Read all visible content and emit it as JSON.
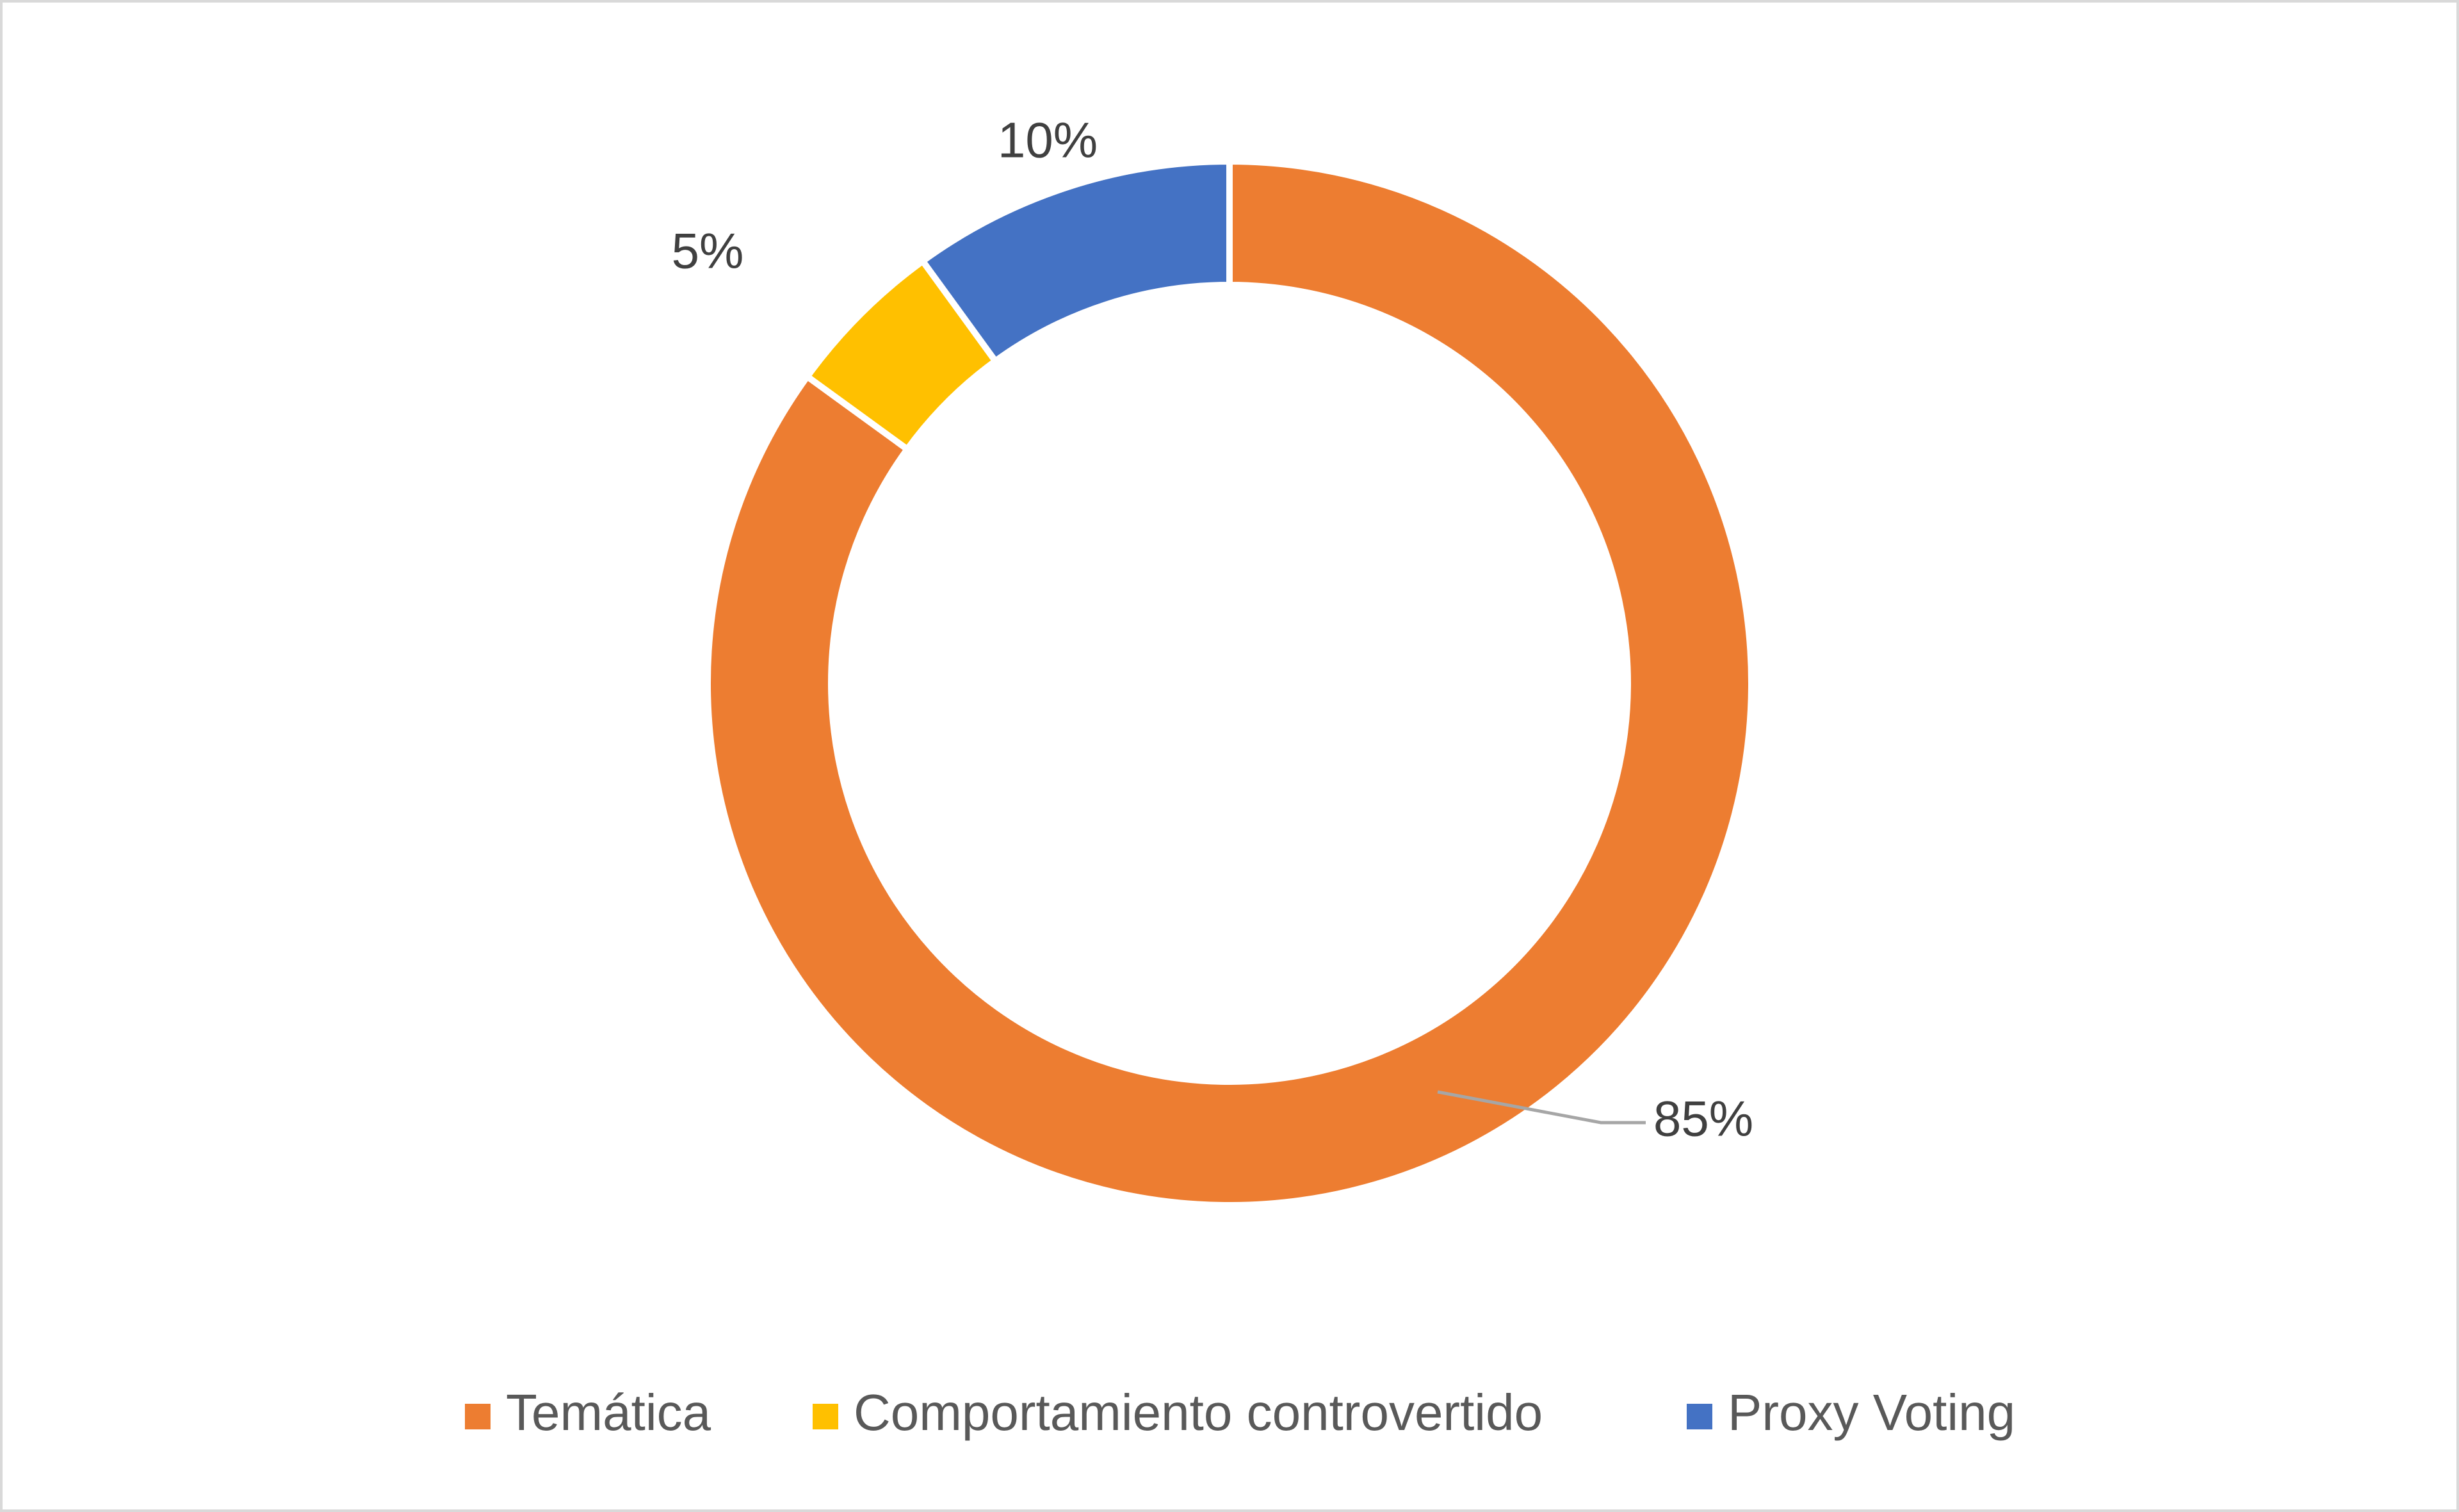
{
  "chart_data": {
    "type": "donut",
    "title": "",
    "categories": [
      "Temática",
      "Comportamiento controvertido",
      "Proxy Voting"
    ],
    "values": [
      85,
      5,
      10
    ],
    "labels": [
      "85%",
      "5%",
      "10%"
    ],
    "start_angle_deg": 0,
    "direction": "clockwise",
    "colors": [
      "#ED7D31",
      "#FFC000",
      "#4472C4"
    ],
    "legend": {
      "placement": "bottom",
      "entries": [
        "Temática",
        "Comportamiento controvertido",
        "Proxy Voting"
      ]
    },
    "segment_border_color": "#FFFFFF",
    "leader_line_color": "#A6A6A6",
    "frame_border_color": "#D9D9D9"
  }
}
